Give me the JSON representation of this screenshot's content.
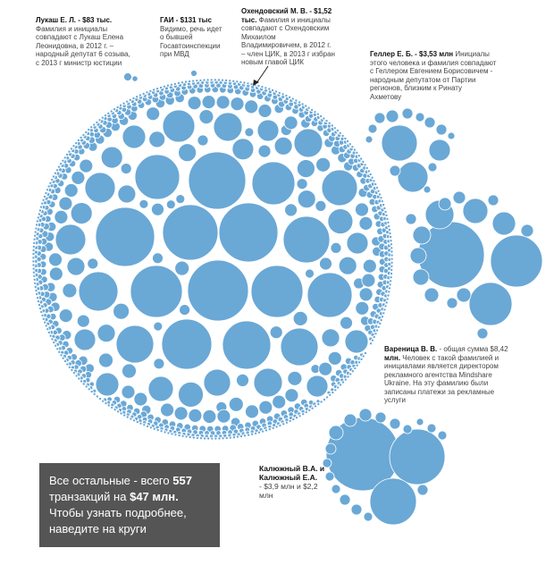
{
  "colors": {
    "bubble": "#6aa8d6",
    "box_bg": "#555555",
    "box_text": "#ffffff"
  },
  "chart_data": {
    "type": "packed-bubble",
    "unit": "transaction amount",
    "highlights": [
      {
        "name": "Лукаш Е. Л.",
        "amount": "$83 тыс."
      },
      {
        "name": "ГАИ",
        "amount": "$131 тыс"
      },
      {
        "name": "Охендовский М. В.",
        "amount": "$1,52 тыс."
      },
      {
        "name": "Геллер Е. Б.",
        "amount": "$3,53 млн"
      },
      {
        "name": "Вареница В. В.",
        "amount": "$8,42 млн."
      },
      {
        "name": "Калюжный В.А. и Калюжный Е.А.",
        "amount": "$3,9 млн и $2,2 млн"
      }
    ],
    "others": {
      "count": "557",
      "total": "$47 млн"
    }
  },
  "annotations": {
    "lukash": {
      "title": "Лукаш Е. Л. - $83 тыс.",
      "body": [
        "Фамилия и инициалы",
        "совпадают с Лукаш Елена",
        "Леонидовна, в 2012 г. –",
        "народный депутат 6 созыва,",
        "с 2013 г министр юстиции"
      ]
    },
    "gai": {
      "title": "ГАИ - $131 тыс",
      "body": [
        "Видимо, речь идет",
        "о бывшей",
        "Госавтоинспекции",
        "при МВД"
      ]
    },
    "okhend": {
      "title": "Охендовский М. В. - $1,52",
      "title2": "тыс.",
      "body_first": "Фамилия и инициалы",
      "body": [
        "совпадают с Охендовским",
        "Михаилом",
        "Владимировичем, в 2012 г.",
        "– член ЦИК, в 2013 г избран",
        "новым главой ЦИК"
      ]
    },
    "geller": {
      "title": "Геллер Е. Б. - $3,53 млн",
      "title_tail": "Инициалы",
      "body": [
        "этого человека и фамилия совпадают",
        "с Геллером Евгением Борисовичем -",
        "народным депутатом от Партии",
        "регионов, близким к Ринату",
        "Ахметову"
      ]
    },
    "varenitsa": {
      "title": "Вареница В. В.",
      "title_tail": "- общая сумма $8,42",
      "title2": "млн.",
      "title2_tail": "Человек с такой фамилией и",
      "body": [
        "инициалами является директором",
        "рекламного агентства Mindshare",
        "Ukraine. На эту фамилию были",
        "записаны платежи за рекламные",
        "услуги"
      ]
    },
    "kalyuzh": {
      "lines": [
        "Калюжный В.А. и",
        "Калюжный Е.А.",
        "- $3,9 млн и $2,2",
        "млн"
      ]
    }
  },
  "info_box": {
    "l1_pre": "Все остальные - всего",
    "l1_num": "557",
    "l2_pre": "транзакций на",
    "l2_num": "$47 млн.",
    "l3": "Чтобы узнать подробнее,",
    "l4": "наведите на круги"
  }
}
